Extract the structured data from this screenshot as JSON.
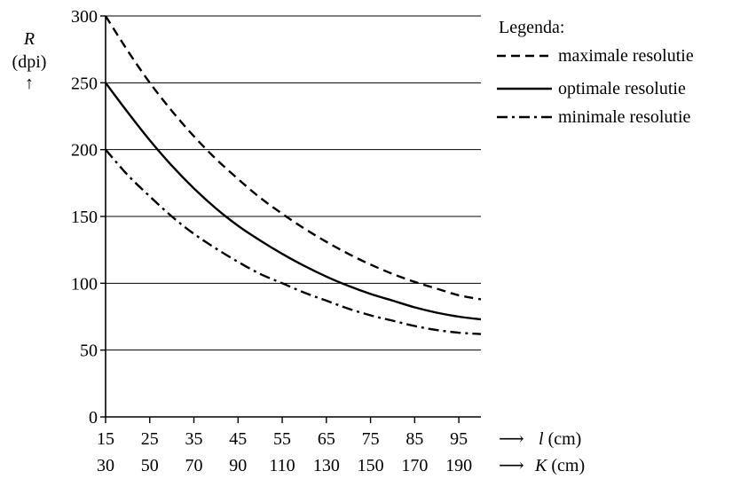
{
  "chart_data": {
    "type": "line",
    "title": "",
    "ylim": [
      0,
      300
    ],
    "yticks": [
      0,
      50,
      100,
      150,
      200,
      250,
      300
    ],
    "grid": "horizontal",
    "y_axis": {
      "symbol": "R",
      "unit": "(dpi)",
      "arrow": "↑"
    },
    "x_axes": [
      {
        "name": "l",
        "arrow": "⟶",
        "symbol": "l",
        "unit": " (cm)",
        "range": [
          15,
          100
        ],
        "ticks": [
          15,
          25,
          35,
          45,
          55,
          65,
          75,
          85,
          95
        ]
      },
      {
        "name": "K",
        "arrow": "⟶",
        "symbol": "K",
        "unit": " (cm)",
        "range": [
          30,
          200
        ],
        "ticks": [
          30,
          50,
          70,
          90,
          110,
          130,
          150,
          170,
          190
        ]
      }
    ],
    "legend": {
      "title": "Legenda:",
      "placement": "top-right",
      "entries": [
        "maximale resolutie",
        "optimale resolutie",
        "minimale resolutie"
      ]
    },
    "series": [
      {
        "name": "maximale resolutie",
        "style": "dashed",
        "x": [
          15,
          20,
          25,
          30,
          35,
          40,
          45,
          50,
          55,
          60,
          65,
          70,
          75,
          80,
          85,
          90,
          95,
          100
        ],
        "y": [
          300,
          274,
          250,
          229,
          210,
          193,
          178,
          164,
          152,
          141,
          131,
          122,
          114,
          107,
          101,
          96,
          91,
          88
        ]
      },
      {
        "name": "optimale resolutie",
        "style": "solid",
        "x": [
          15,
          20,
          25,
          30,
          35,
          40,
          45,
          50,
          55,
          60,
          65,
          70,
          75,
          80,
          85,
          90,
          95,
          100
        ],
        "y": [
          250,
          228,
          207,
          188,
          171,
          156,
          143,
          132,
          122,
          113,
          105,
          98,
          92,
          87,
          82,
          78,
          75,
          73
        ]
      },
      {
        "name": "minimale resolutie",
        "style": "dashdot",
        "x": [
          15,
          20,
          25,
          30,
          35,
          40,
          45,
          50,
          55,
          60,
          65,
          70,
          75,
          80,
          85,
          90,
          95,
          100
        ],
        "y": [
          200,
          181,
          165,
          150,
          137,
          126,
          116,
          107,
          100,
          93,
          87,
          81,
          76,
          72,
          68,
          65,
          63,
          62
        ]
      }
    ]
  }
}
